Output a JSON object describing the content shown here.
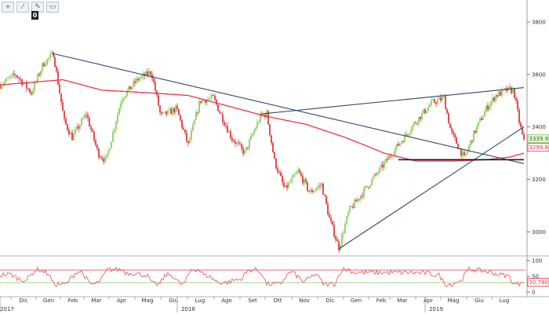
{
  "toolbar": {
    "buttons": [
      {
        "icon": "plus-icon",
        "glyph": "+"
      },
      {
        "icon": "draw-line-icon",
        "glyph": "⁄"
      },
      {
        "icon": "pen-icon",
        "glyph": "✎"
      },
      {
        "icon": "rectangle-icon",
        "glyph": "▭"
      }
    ],
    "badge": "0"
  },
  "colors": {
    "up": "#7ec850",
    "down": "#d9242a",
    "ma": "#e8344a",
    "trend": "#2c4a68",
    "support": "#1a1a1a",
    "rsi": "#e8344a",
    "rsi_upper": "#e8344a",
    "rsi_lower": "#7ec850"
  },
  "chart_data": [
    {
      "type": "candlestick",
      "y_ticks": [
        "3800",
        "3600",
        "3400",
        "3200",
        "3000"
      ],
      "ylim": [
        2920,
        3860
      ],
      "x_months": [
        "Dic",
        "Gen",
        "Feb",
        "Mar",
        "Apr",
        "Mag",
        "Giu",
        "Lug",
        "Ago",
        "Set",
        "Ott",
        "Nov",
        "Dic",
        "Gen",
        "Feb",
        "Mar",
        "Apr",
        "Mag",
        "Giu",
        "Lug"
      ],
      "x_years": [
        "2017",
        "2018",
        "2019"
      ],
      "last_price_label": "3339.9560",
      "ma_value_label": "3299.8410",
      "price_anchors": [
        [
          0,
          3560
        ],
        [
          20,
          3600
        ],
        [
          40,
          3530
        ],
        [
          55,
          3640
        ],
        [
          68,
          3680
        ],
        [
          82,
          3420
        ],
        [
          92,
          3360
        ],
        [
          110,
          3450
        ],
        [
          125,
          3300
        ],
        [
          135,
          3270
        ],
        [
          155,
          3510
        ],
        [
          175,
          3580
        ],
        [
          193,
          3610
        ],
        [
          205,
          3440
        ],
        [
          225,
          3470
        ],
        [
          240,
          3330
        ],
        [
          255,
          3500
        ],
        [
          272,
          3510
        ],
        [
          295,
          3360
        ],
        [
          312,
          3300
        ],
        [
          332,
          3440
        ],
        [
          340,
          3450
        ],
        [
          350,
          3270
        ],
        [
          363,
          3160
        ],
        [
          380,
          3230
        ],
        [
          395,
          3150
        ],
        [
          410,
          3180
        ],
        [
          420,
          3050
        ],
        [
          432,
          2940
        ],
        [
          445,
          3080
        ],
        [
          465,
          3160
        ],
        [
          490,
          3260
        ],
        [
          510,
          3340
        ],
        [
          530,
          3420
        ],
        [
          550,
          3490
        ],
        [
          566,
          3510
        ],
        [
          575,
          3380
        ],
        [
          592,
          3280
        ],
        [
          605,
          3380
        ],
        [
          620,
          3470
        ],
        [
          632,
          3520
        ],
        [
          646,
          3540
        ],
        [
          655,
          3540
        ],
        [
          662,
          3420
        ],
        [
          668,
          3340
        ]
      ],
      "ma_anchors": [
        [
          0,
          3560
        ],
        [
          40,
          3570
        ],
        [
          80,
          3580
        ],
        [
          130,
          3540
        ],
        [
          190,
          3530
        ],
        [
          240,
          3520
        ],
        [
          290,
          3480
        ],
        [
          340,
          3440
        ],
        [
          390,
          3410
        ],
        [
          440,
          3360
        ],
        [
          490,
          3300
        ],
        [
          530,
          3270
        ],
        [
          580,
          3270
        ],
        [
          620,
          3275
        ],
        [
          650,
          3285
        ],
        [
          668,
          3300
        ]
      ],
      "trendlines": [
        [
          [
            67,
            3680
          ],
          [
            668,
            3260
          ]
        ],
        [
          [
            335,
            3450
          ],
          [
            668,
            3550
          ]
        ],
        [
          [
            432,
            2935
          ],
          [
            668,
            3400
          ]
        ]
      ],
      "support": [
        [
          508,
          3275
        ],
        [
          668,
          3275
        ]
      ]
    },
    {
      "type": "line",
      "indicator": "rsi",
      "y_ticks": [
        "100",
        "50",
        "0"
      ],
      "ylim": [
        0,
        100
      ],
      "upper_level": 70,
      "lower_level": 30,
      "last_value_label": "30.7807"
    }
  ]
}
